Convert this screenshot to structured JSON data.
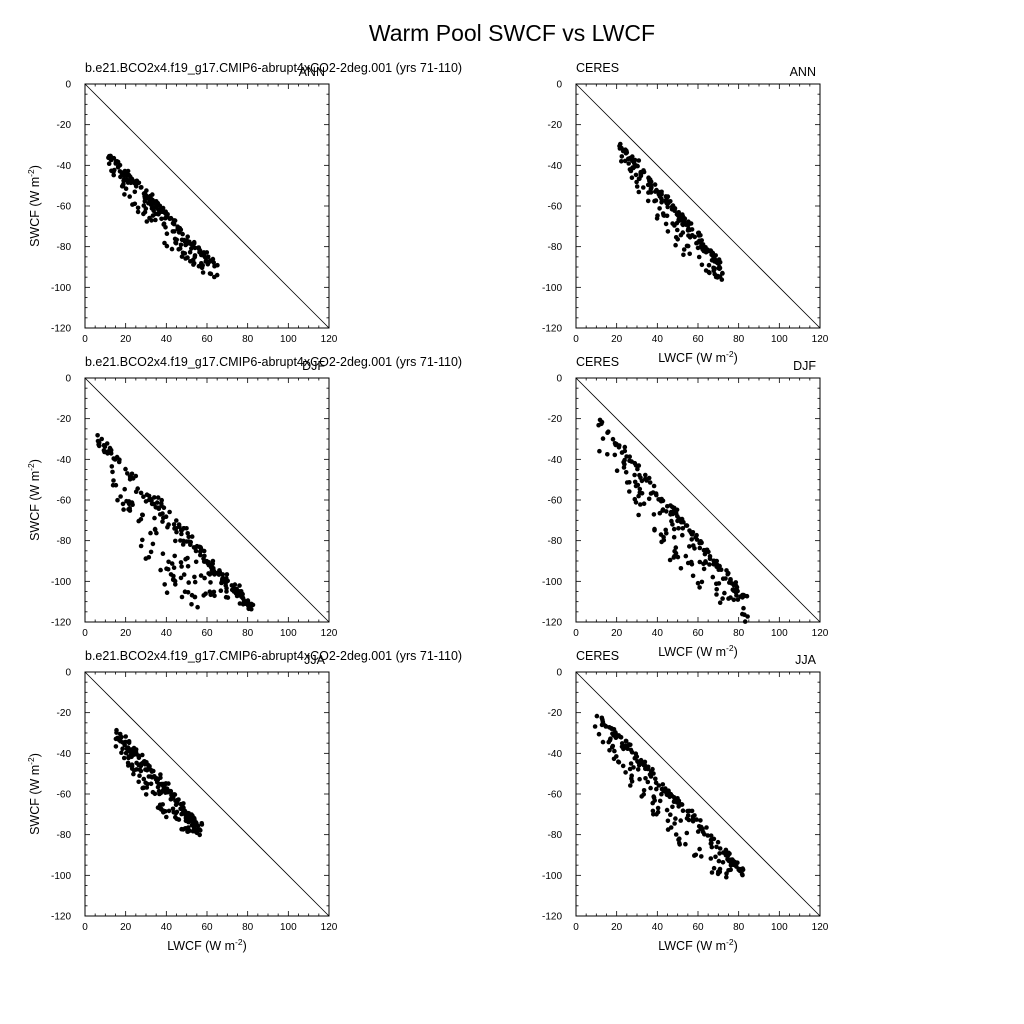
{
  "figure": {
    "title": "Warm Pool SWCF vs LWCF"
  },
  "chart_data": [
    {
      "type": "scatter",
      "left_label": "b.e21.BCO2x4.f19_g17.CMIP6-abrupt4xCO2-2deg.001 (yrs 71-110)",
      "right_label": "ANN",
      "xlabel": "",
      "ylabel": "SWCF (W m-2)",
      "xlim": [
        0,
        120
      ],
      "ylim": [
        -120,
        0
      ],
      "xticks": [
        "0",
        "20",
        "40",
        "60",
        "80",
        "100",
        "120"
      ],
      "yticks": [
        "0",
        "-20",
        "-40",
        "-60",
        "-80",
        "-100",
        "-120"
      ],
      "reference_line": {
        "from": [
          0,
          0
        ],
        "to": [
          120,
          -120
        ]
      },
      "shape": {
        "kind": "band",
        "xa": 11,
        "ya": -32,
        "xb": 64,
        "yb": -88,
        "width": 14,
        "offset": -5,
        "n": 220,
        "seed": 11
      }
    },
    {
      "type": "scatter",
      "left_label": "CERES",
      "right_label": "ANN",
      "xlabel": "LWCF (W m-2)",
      "ylabel": "",
      "xlim": [
        0,
        120
      ],
      "ylim": [
        -120,
        0
      ],
      "xticks": [
        "0",
        "20",
        "40",
        "60",
        "80",
        "100",
        "120"
      ],
      "yticks": [
        "0",
        "-20",
        "-40",
        "-60",
        "-80",
        "-100",
        "-120"
      ],
      "reference_line": {
        "from": [
          0,
          0
        ],
        "to": [
          120,
          -120
        ]
      },
      "shape": {
        "kind": "band",
        "xa": 22,
        "ya": -28,
        "xb": 72,
        "yb": -88,
        "width": 16,
        "offset": -4,
        "n": 210,
        "seed": 23
      }
    },
    {
      "type": "scatter",
      "left_label": "b.e21.BCO2x4.f19_g17.CMIP6-abrupt4xCO2-2deg.001 (yrs 71-110)",
      "right_label": "DJF",
      "xlabel": "",
      "ylabel": "SWCF (W m-2)",
      "xlim": [
        0,
        120
      ],
      "ylim": [
        -120,
        0
      ],
      "xticks": [
        "0",
        "20",
        "40",
        "60",
        "80",
        "100",
        "120"
      ],
      "yticks": [
        "0",
        "-20",
        "-40",
        "-60",
        "-80",
        "-100",
        "-120"
      ],
      "reference_line": {
        "from": [
          0,
          0
        ],
        "to": [
          120,
          -120
        ]
      },
      "shape": {
        "kind": "wedge",
        "xa": 6,
        "ya": -25,
        "xb": 82,
        "yb": -110,
        "width": 40,
        "offset": -18,
        "n": 260,
        "seed": 37
      }
    },
    {
      "type": "scatter",
      "left_label": "CERES",
      "right_label": "DJF",
      "xlabel": "LWCF (W m-2)",
      "ylabel": "",
      "xlim": [
        0,
        120
      ],
      "ylim": [
        -120,
        0
      ],
      "xticks": [
        "0",
        "20",
        "40",
        "60",
        "80",
        "100",
        "120"
      ],
      "yticks": [
        "0",
        "-20",
        "-40",
        "-60",
        "-80",
        "-100",
        "-120"
      ],
      "reference_line": {
        "from": [
          0,
          0
        ],
        "to": [
          120,
          -120
        ]
      },
      "shape": {
        "kind": "band",
        "xa": 10,
        "ya": -18,
        "xb": 85,
        "yb": -108,
        "width": 24,
        "offset": -6,
        "n": 210,
        "seed": 41
      }
    },
    {
      "type": "scatter",
      "left_label": "b.e21.BCO2x4.f19_g17.CMIP6-abrupt4xCO2-2deg.001 (yrs 71-110)",
      "right_label": "JJA",
      "xlabel": "LWCF (W m-2)",
      "ylabel": "SWCF (W m-2)",
      "xlim": [
        0,
        120
      ],
      "ylim": [
        -120,
        0
      ],
      "xticks": [
        "0",
        "20",
        "40",
        "60",
        "80",
        "100",
        "120"
      ],
      "yticks": [
        "0",
        "-20",
        "-40",
        "-60",
        "-80",
        "-100",
        "-120"
      ],
      "reference_line": {
        "from": [
          0,
          0
        ],
        "to": [
          120,
          -120
        ]
      },
      "shape": {
        "kind": "band",
        "xa": 15,
        "ya": -27,
        "xb": 57,
        "yb": -74,
        "width": 14,
        "offset": -6,
        "n": 220,
        "seed": 53
      }
    },
    {
      "type": "scatter",
      "left_label": "CERES",
      "right_label": "JJA",
      "xlabel": "LWCF (W m-2)",
      "ylabel": "",
      "xlim": [
        0,
        120
      ],
      "ylim": [
        -120,
        0
      ],
      "xticks": [
        "0",
        "20",
        "40",
        "60",
        "80",
        "100",
        "120"
      ],
      "yticks": [
        "0",
        "-20",
        "-40",
        "-60",
        "-80",
        "-100",
        "-120"
      ],
      "reference_line": {
        "from": [
          0,
          0
        ],
        "to": [
          120,
          -120
        ]
      },
      "shape": {
        "kind": "band",
        "xa": 10,
        "ya": -18,
        "xb": 82,
        "yb": -96,
        "width": 20,
        "offset": -6,
        "n": 220,
        "seed": 67
      }
    }
  ]
}
